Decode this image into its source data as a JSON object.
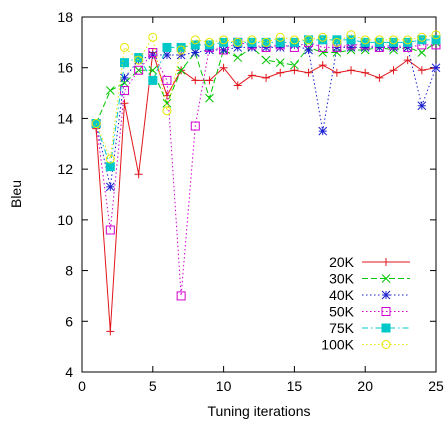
{
  "chart_data": {
    "type": "line",
    "xlabel": "Tuning iterations",
    "ylabel": "Bleu",
    "xlim": [
      0,
      25
    ],
    "ylim": [
      4,
      18
    ],
    "xticks": [
      0,
      5,
      10,
      15,
      20,
      25
    ],
    "yticks": [
      4,
      6,
      8,
      10,
      12,
      14,
      16,
      18
    ],
    "grid": false,
    "legend_position": "bottom-right",
    "x": [
      1,
      2,
      3,
      4,
      5,
      6,
      7,
      8,
      9,
      10,
      11,
      12,
      13,
      14,
      15,
      16,
      17,
      18,
      19,
      20,
      21,
      22,
      23,
      24,
      25
    ],
    "series": [
      {
        "name": "20K",
        "color": "#e0161c",
        "marker": "plus",
        "dash": "solid",
        "values": [
          13.6,
          5.6,
          14.6,
          11.8,
          16.6,
          14.9,
          15.9,
          15.5,
          15.5,
          16.0,
          15.3,
          15.7,
          15.6,
          15.8,
          15.9,
          15.8,
          16.1,
          15.8,
          15.9,
          15.8,
          15.6,
          15.9,
          16.3,
          15.9,
          16.0
        ]
      },
      {
        "name": "30K",
        "color": "#00c800",
        "marker": "x",
        "dash": "dashed",
        "values": [
          13.8,
          15.1,
          15.4,
          15.9,
          15.9,
          14.6,
          15.9,
          16.6,
          14.8,
          16.7,
          16.4,
          16.8,
          16.3,
          16.2,
          16.1,
          16.8,
          16.6,
          16.6,
          16.7,
          16.7,
          16.8,
          16.7,
          16.8,
          16.6,
          17.0
        ]
      },
      {
        "name": "40K",
        "color": "#1a1fd0",
        "marker": "star",
        "dash": "dotted",
        "values": [
          13.8,
          11.3,
          15.6,
          16.3,
          16.5,
          16.5,
          16.5,
          16.6,
          16.7,
          16.7,
          16.8,
          16.8,
          16.8,
          16.8,
          16.9,
          16.7,
          13.5,
          16.8,
          16.8,
          16.8,
          16.8,
          16.8,
          16.8,
          14.5,
          16.0
        ]
      },
      {
        "name": "50K",
        "color": "#d000d0",
        "marker": "square-open",
        "dash": "dotted",
        "values": [
          13.8,
          9.6,
          15.1,
          15.9,
          16.6,
          15.5,
          7.0,
          13.7,
          16.8,
          16.7,
          17.0,
          16.9,
          16.8,
          16.9,
          16.8,
          17.0,
          16.8,
          16.8,
          16.9,
          16.9,
          16.8,
          16.9,
          16.8,
          16.9,
          16.9
        ]
      },
      {
        "name": "75K",
        "color": "#00c8c8",
        "marker": "square-filled",
        "dash": "dashdot",
        "values": [
          13.8,
          12.1,
          16.2,
          16.4,
          15.5,
          16.8,
          16.8,
          16.9,
          16.9,
          17.0,
          17.0,
          17.0,
          17.0,
          17.0,
          17.0,
          17.1,
          17.1,
          17.1,
          17.1,
          17.0,
          17.0,
          17.0,
          17.0,
          17.1,
          17.1
        ]
      },
      {
        "name": "100K",
        "color": "#e6e600",
        "marker": "circle-open",
        "dash": "dotted",
        "values": [
          13.8,
          12.4,
          16.8,
          16.3,
          17.2,
          14.3,
          16.7,
          17.1,
          17.0,
          17.1,
          17.0,
          17.1,
          17.0,
          17.2,
          17.1,
          17.1,
          17.2,
          17.0,
          17.3,
          17.1,
          17.1,
          17.1,
          17.1,
          17.2,
          17.3
        ]
      }
    ]
  }
}
